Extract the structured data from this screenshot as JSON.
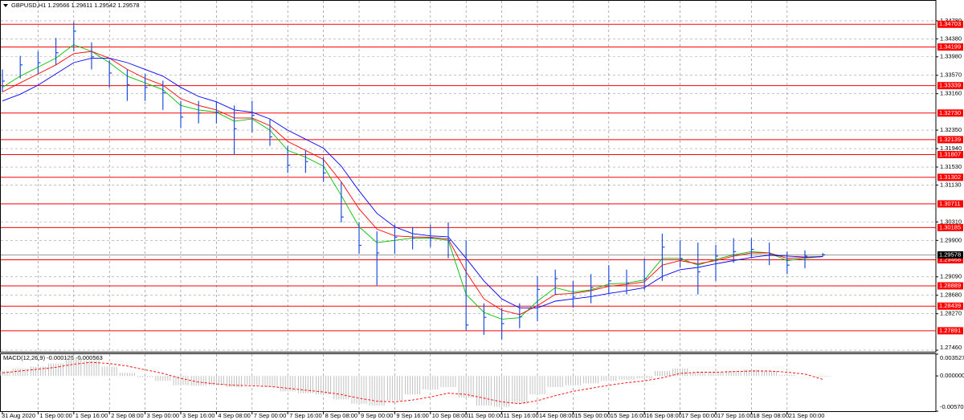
{
  "chart_data": [
    {
      "type": "ohlc",
      "title": "GBPUSD,H1  1.29566 1.29611 1.29542 1.29578",
      "categories": [
        "31 Aug 2020",
        null,
        "1 Sep 00:00",
        null,
        "1 Sep 16:00",
        null,
        "2 Sep 08:00",
        null,
        "3 Sep 00:00",
        null,
        "3 Sep 16:00",
        null,
        "4 Sep 08:00",
        null,
        "7 Sep 00:00",
        null,
        "7 Sep 16:00",
        null,
        "8 Sep 08:00",
        null,
        "9 Sep 00:00",
        null,
        "9 Sep 16:00",
        null,
        "10 Sep 08:00",
        null,
        "11 Sep 00:00",
        null,
        "11 Sep 16:00",
        null,
        "14 Sep 08:00",
        null,
        "15 Sep 00:00",
        null,
        "15 Sep 16:00",
        null,
        "16 Sep 08:00",
        null,
        "17 Sep 00:00",
        null,
        "17 Sep 16:00",
        null,
        "18 Sep 08:00",
        null,
        "21 Sep 00:00",
        null,
        null
      ],
      "high": [
        1.337,
        1.34,
        1.341,
        1.344,
        1.3475,
        1.343,
        1.339,
        1.337,
        1.336,
        1.3345,
        1.33,
        1.33,
        1.33,
        1.329,
        1.33,
        1.326,
        1.32,
        1.319,
        1.3175,
        1.312,
        1.303,
        1.301,
        1.3025,
        1.302,
        1.3025,
        1.303,
        1.299,
        1.285,
        1.284,
        1.285,
        1.291,
        1.2925,
        1.29,
        1.2915,
        1.2935,
        1.2925,
        1.295,
        1.3005,
        1.299,
        1.2985,
        1.298,
        1.2995,
        1.2995,
        1.2985,
        1.2965,
        1.2968,
        1.2962
      ],
      "low": [
        1.332,
        1.335,
        1.336,
        1.338,
        1.341,
        1.337,
        1.333,
        1.33,
        1.33,
        1.328,
        1.324,
        1.325,
        1.325,
        1.318,
        1.323,
        1.32,
        1.314,
        1.314,
        1.312,
        1.303,
        1.296,
        1.289,
        1.296,
        1.297,
        1.2975,
        1.295,
        1.279,
        1.278,
        1.277,
        1.2795,
        1.281,
        1.287,
        1.284,
        1.285,
        1.287,
        1.287,
        1.288,
        1.29,
        1.293,
        1.287,
        1.29,
        1.294,
        1.295,
        1.2935,
        1.2915,
        1.2928,
        1.2954
      ],
      "values": [
        1.3344,
        1.338,
        1.3385,
        1.3407,
        1.3455,
        1.3398,
        1.3362,
        1.3336,
        1.333,
        1.3318,
        1.3264,
        1.3273,
        1.3275,
        1.3238,
        1.3268,
        1.322,
        1.3157,
        1.3165,
        1.314,
        1.3042,
        1.2979,
        1.2962,
        1.2997,
        1.2995,
        1.2995,
        1.299,
        1.2802,
        1.2819,
        1.2805,
        1.282,
        1.2881,
        1.2905,
        1.2864,
        1.2885,
        1.29,
        1.2895,
        1.2905,
        1.2975,
        1.295,
        1.292,
        1.2955,
        1.2965,
        1.297,
        1.296,
        1.2935,
        1.2955,
        1.2958
      ],
      "color": "#1e50dc",
      "series": [
        {
          "color": "#00c000",
          "values": [
            1.333,
            1.3355,
            1.3375,
            1.3395,
            1.3425,
            1.341,
            1.3385,
            1.3355,
            1.334,
            1.3325,
            1.329,
            1.328,
            1.3275,
            1.3255,
            1.326,
            1.3235,
            1.319,
            1.3175,
            1.3155,
            1.309,
            1.302,
            1.2985,
            1.299,
            1.2995,
            1.2995,
            1.299,
            1.287,
            1.283,
            1.2815,
            1.2818,
            1.2855,
            1.2885,
            1.2875,
            1.288,
            1.2893,
            1.2895,
            1.2902,
            1.295,
            1.295,
            1.2935,
            1.2948,
            1.2958,
            1.2965,
            1.2962,
            1.2945,
            1.295,
            1.2954
          ]
        },
        {
          "color": "#ff0000",
          "values": [
            1.332,
            1.334,
            1.336,
            1.338,
            1.3405,
            1.341,
            1.3395,
            1.337,
            1.335,
            1.3335,
            1.3305,
            1.329,
            1.328,
            1.3262,
            1.3262,
            1.3245,
            1.321,
            1.319,
            1.317,
            1.312,
            1.306,
            1.3015,
            1.3,
            1.2998,
            1.2997,
            1.2993,
            1.292,
            1.286,
            1.2835,
            1.2825,
            1.2845,
            1.287,
            1.2872,
            1.2878,
            1.2888,
            1.2892,
            1.2898,
            1.2935,
            1.2945,
            1.2938,
            1.2945,
            1.2955,
            1.2962,
            1.2962,
            1.295,
            1.2952,
            1.2954
          ]
        },
        {
          "color": "#0000ff",
          "values": [
            1.33,
            1.3315,
            1.3335,
            1.336,
            1.3385,
            1.3395,
            1.3395,
            1.3385,
            1.337,
            1.3355,
            1.333,
            1.331,
            1.3298,
            1.328,
            1.3275,
            1.326,
            1.3235,
            1.3215,
            1.3195,
            1.3155,
            1.31,
            1.305,
            1.302,
            1.3005,
            1.3,
            1.2998,
            1.295,
            1.29,
            1.286,
            1.284,
            1.284,
            1.2855,
            1.286,
            1.2865,
            1.2872,
            1.2878,
            1.2885,
            1.291,
            1.2925,
            1.293,
            1.2938,
            1.2945,
            1.2952,
            1.2957,
            1.2955,
            1.2953,
            1.2954
          ]
        }
      ],
      "ylim": [
        1.27425,
        1.35225
      ],
      "yticks": [
        {
          "value": 1.3478,
          "label": "1.34780"
        },
        {
          "value": 1.3438,
          "label": "1.34380"
        },
        {
          "value": 1.3398,
          "label": "1.33980"
        },
        {
          "value": 1.3357,
          "label": "1.33570"
        },
        {
          "value": 1.3316,
          "label": "1.33160"
        },
        {
          "value": 1.3235,
          "label": "1.32350"
        },
        {
          "value": 1.3194,
          "label": "1.31940"
        },
        {
          "value": 1.3153,
          "label": "1.31530"
        },
        {
          "value": 1.3113,
          "label": "1.31130"
        },
        {
          "value": 1.3031,
          "label": "1.30310"
        },
        {
          "value": 1.299,
          "label": "1.29900"
        },
        {
          "value": 1.2909,
          "label": "1.29090"
        },
        {
          "value": 1.2868,
          "label": "1.28680"
        },
        {
          "value": 1.2827,
          "label": "1.28270"
        },
        {
          "value": 1.2746,
          "label": "1.27460"
        }
      ],
      "levels": [
        1.34703,
        1.34199,
        1.33339,
        {
          "value": 1.3273,
          "label": "1.32730"
        },
        1.32139,
        1.31807,
        1.31302,
        1.30711,
        1.30185,
        1.29468,
        1.28889,
        1.28439,
        1.27891
      ],
      "level_color": "#ff0000",
      "current_price": 1.29578,
      "grid": true
    },
    {
      "type": "macd",
      "title": "MACD(12,26,9) -0.000126 -0.000563",
      "series": [
        {
          "color": "#c0c0c0",
          "values": [
            0.0008,
            0.0012,
            0.0015,
            0.002,
            0.003,
            0.0025,
            0.0015,
            0.0005,
            -0.0002,
            -0.0008,
            -0.0015,
            -0.0016,
            -0.0015,
            -0.0018,
            -0.0015,
            -0.0018,
            -0.0025,
            -0.0028,
            -0.003,
            -0.0038,
            -0.0045,
            -0.0048,
            -0.004,
            -0.003,
            -0.0022,
            -0.0018,
            -0.0035,
            -0.0048,
            -0.005,
            -0.0045,
            -0.003,
            -0.0018,
            -0.0015,
            -0.0012,
            -0.0008,
            -0.0006,
            -0.0004,
            0.0008,
            0.0012,
            0.0006,
            0.0006,
            0.0008,
            0.001,
            0.0008,
            0.0002,
            0.0,
            -0.000126
          ]
        },
        {
          "color": "#ff0000",
          "values": [
            0.0005,
            0.0008,
            0.0011,
            0.0014,
            0.0019,
            0.0022,
            0.002,
            0.0016,
            0.001,
            0.0004,
            -0.0004,
            -0.001,
            -0.0013,
            -0.0015,
            -0.0016,
            -0.0017,
            -0.002,
            -0.0023,
            -0.0026,
            -0.003,
            -0.0036,
            -0.0041,
            -0.0042,
            -0.0039,
            -0.0034,
            -0.0028,
            -0.003,
            -0.0036,
            -0.0042,
            -0.0045,
            -0.004,
            -0.0032,
            -0.0025,
            -0.002,
            -0.0015,
            -0.0011,
            -0.0008,
            -0.0003,
            0.0004,
            0.0006,
            0.0006,
            0.0007,
            0.0008,
            0.0008,
            0.0006,
            0.0003,
            -0.000563
          ]
        }
      ],
      "ylim": [
        -0.005707,
        0.003527
      ],
      "yticks": [
        0.003527,
        {
          "value": 0,
          "label": "0.000000"
        },
        -0.005707
      ]
    }
  ]
}
